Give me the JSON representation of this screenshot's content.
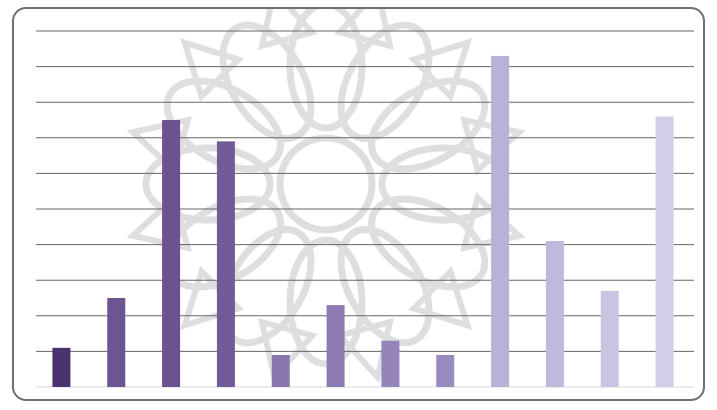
{
  "chart_data": {
    "type": "bar",
    "categories": [
      "",
      "",
      "",
      "",
      "",
      "",
      "",
      "",
      "",
      "",
      "",
      ""
    ],
    "values": [
      1.1,
      2.5,
      7.5,
      6.9,
      0.9,
      2.3,
      1.3,
      0.9,
      9.3,
      4.1,
      2.7,
      7.6
    ],
    "ylim": [
      0,
      10
    ],
    "grid": true,
    "bar_colors": [
      "#4b3370",
      "#6c5590",
      "#6a5390",
      "#725b98",
      "#8a77ad",
      "#8d7bb2",
      "#9484ba",
      "#9a8bbf",
      "#bab1d6",
      "#c1b9db",
      "#cbc4e2",
      "#d3cde8"
    ],
    "gridline_color": "#666666",
    "watermark": "ornamental-rosette"
  }
}
